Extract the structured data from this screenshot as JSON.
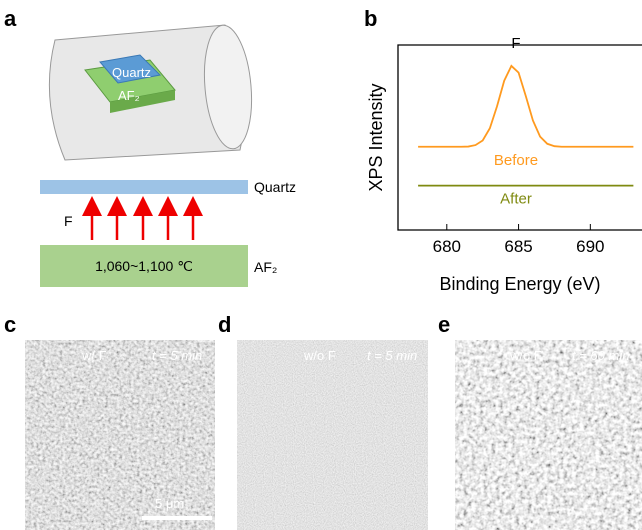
{
  "panel_a": {
    "label": "a",
    "tube_top": "Quartz",
    "tube_bottom": "AF₂",
    "quartz": "Quartz",
    "source": "F",
    "temperature": "1,060~1,100 ℃",
    "substrate": "AF₂"
  },
  "chart_data": {
    "type": "line",
    "panel_label": "b",
    "annotation": "F",
    "xlabel": "Binding Energy (eV)",
    "ylabel": "XPS Intensity",
    "x": [
      678,
      678.5,
      679,
      679.5,
      680,
      680.5,
      681,
      681.5,
      682,
      682.5,
      683,
      683.5,
      684,
      684.5,
      685,
      685.5,
      686,
      686.5,
      687,
      687.5,
      688,
      688.5,
      689,
      689.5,
      690,
      690.5,
      691,
      691.5,
      692,
      692.5,
      693
    ],
    "series": [
      {
        "name": "Before",
        "color": "#ff9a1f",
        "values": [
          45,
          45,
          45,
          45,
          45,
          45,
          45,
          45.1,
          45.9,
          48.4,
          55,
          66.9,
          80.7,
          88.7,
          85.1,
          72.5,
          59.2,
          50.5,
          46.6,
          45.3,
          45,
          45,
          45,
          45,
          45,
          45,
          45,
          45,
          45,
          45,
          45
        ]
      },
      {
        "name": "After",
        "color": "#7f8a10",
        "values": [
          24,
          24,
          24,
          24,
          24,
          24,
          24,
          24,
          24,
          24,
          24,
          24,
          24,
          24,
          24,
          24,
          24,
          24,
          24,
          24,
          24,
          24,
          24,
          24,
          24,
          24,
          24,
          24,
          24,
          24,
          24
        ]
      }
    ],
    "xlim": [
      676.6,
      693.6
    ],
    "ylim": [
      0,
      100
    ],
    "xticks": [
      680,
      685,
      690
    ]
  },
  "panel_c": {
    "label": "c",
    "condition": "w/ F",
    "time": "t = 5 min",
    "scale_bar": "5 μm"
  },
  "panel_d": {
    "label": "d",
    "condition": "w/o F",
    "time": "t = 5 min"
  },
  "panel_e": {
    "label": "e",
    "condition": "w/o F",
    "time": "t = 60 min"
  }
}
